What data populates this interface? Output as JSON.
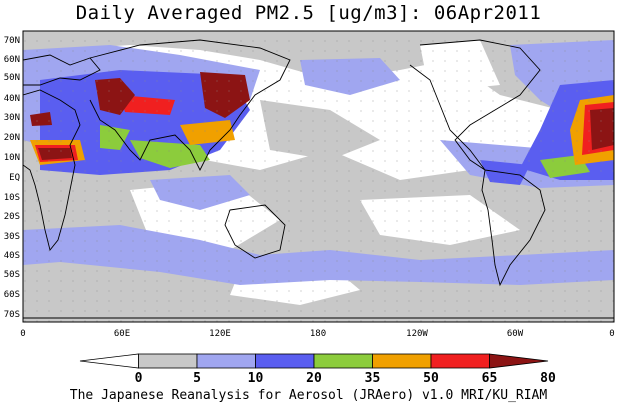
{
  "title": "Daily Averaged PM2.5 [ug/m3]: 06Apr2011",
  "footer": "The Japanese Reanalysis for Aerosol (JRAero) v1.0 MRI/KU_RIAM",
  "map": {
    "lat_labels": [
      "70N",
      "60N",
      "50N",
      "40N",
      "30N",
      "20N",
      "10N",
      "EQ",
      "10S",
      "20S",
      "30S",
      "40S",
      "50S",
      "60S",
      "70S"
    ],
    "lon_labels": [
      "0",
      "60E",
      "120E",
      "180",
      "120W",
      "60W",
      "0"
    ]
  },
  "colorbar": {
    "ticks": [
      "0",
      "5",
      "10",
      "20",
      "35",
      "50",
      "65",
      "80"
    ],
    "colors": [
      "#ffffff",
      "#c8c8c8",
      "#a0a6f0",
      "#5a5ef0",
      "#8ccc3c",
      "#f0a000",
      "#f02020",
      "#8c1414"
    ]
  }
}
